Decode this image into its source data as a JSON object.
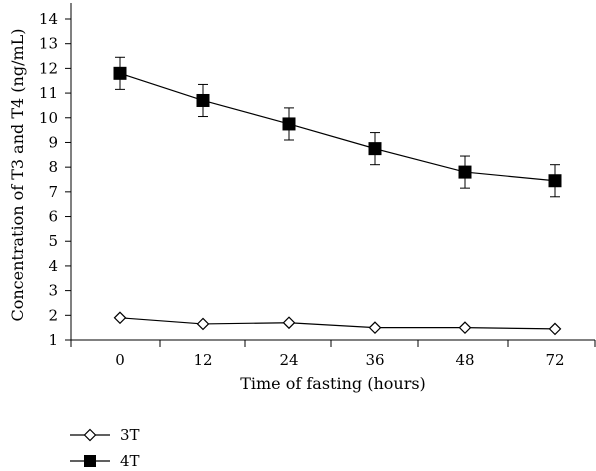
{
  "chart_data": {
    "type": "line",
    "categories": [
      "0",
      "12",
      "24",
      "36",
      "48",
      "72"
    ],
    "xlabel": "Time of fasting (hours)",
    "ylabel": "Concentration of T3 and T4 (ng/mL)",
    "ylim": [
      1,
      14
    ],
    "yticks": [
      "1",
      "2",
      "3",
      "4",
      "5",
      "6",
      "7",
      "8",
      "9",
      "10",
      "11",
      "12",
      "13",
      "14"
    ],
    "grid": false,
    "legend_position": "bottom-left",
    "series": [
      {
        "name": "3T",
        "marker": "open-diamond",
        "color": "#000000",
        "values": [
          1.9,
          1.65,
          1.7,
          1.5,
          1.5,
          1.45
        ]
      },
      {
        "name": "4T",
        "marker": "filled-square",
        "color": "#000000",
        "values": [
          11.8,
          10.7,
          9.75,
          8.75,
          7.8,
          7.45
        ],
        "error": [
          0.65,
          0.65,
          0.65,
          0.65,
          0.65,
          0.65
        ]
      }
    ]
  }
}
